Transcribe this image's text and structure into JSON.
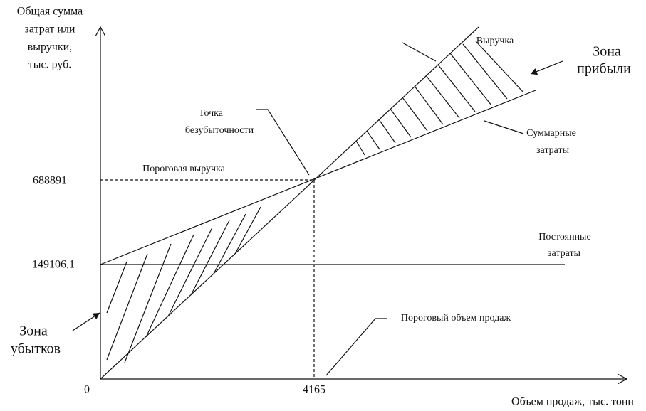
{
  "title_y": [
    "Общая сумма",
    "затрат или",
    "выручки,",
    "тыс. руб."
  ],
  "x_axis_label": "Объем продаж, тыс. тонн",
  "origin": "0",
  "y_values": {
    "breakeven_revenue": "688891",
    "fixed_costs": "149106,1"
  },
  "x_values": {
    "breakeven_volume": "4165"
  },
  "labels": {
    "revenue": "Выручка",
    "profit_zone": [
      "Зона",
      "прибыли"
    ],
    "breakeven_point": [
      "Точка",
      "безубыточности"
    ],
    "total_costs": [
      "Суммарные",
      "затраты"
    ],
    "threshold_revenue": "Пороговая выручка",
    "fixed_costs": [
      "Постоянные",
      "затраты"
    ],
    "loss_zone": [
      "Зона",
      "убытков"
    ],
    "threshold_volume": "Пороговый объем продаж"
  }
}
